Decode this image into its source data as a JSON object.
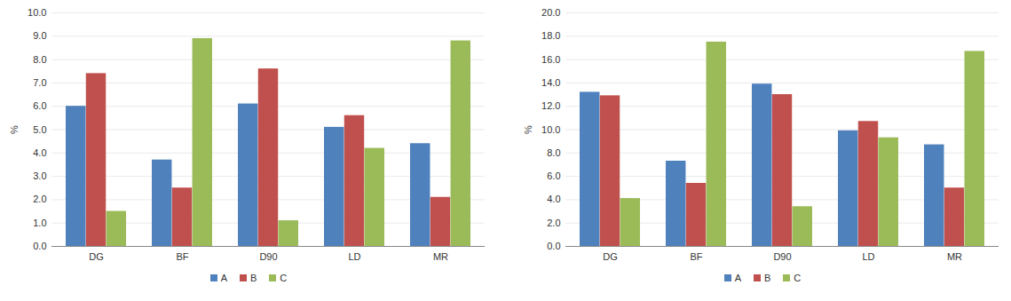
{
  "chart_data": [
    {
      "type": "bar",
      "y_label": "%",
      "grid": true,
      "legend": "bottom",
      "categories": [
        "DG",
        "BF",
        "D90",
        "LD",
        "MR"
      ],
      "ylim": [
        0,
        10
      ],
      "yticks": [
        {
          "value": 0,
          "label": "0.0"
        },
        {
          "value": 1,
          "label": "1.0"
        },
        {
          "value": 2,
          "label": "2.0"
        },
        {
          "value": 3,
          "label": "3.0"
        },
        {
          "value": 4,
          "label": "4.0"
        },
        {
          "value": 5,
          "label": "5.0"
        },
        {
          "value": 6,
          "label": "6.0"
        },
        {
          "value": 7,
          "label": "7.0"
        },
        {
          "value": 8,
          "label": "8.0"
        },
        {
          "value": 9,
          "label": "9.0"
        },
        {
          "value": 10,
          "label": "10.0"
        }
      ],
      "series": [
        {
          "name": "A",
          "color": "#4f81bd",
          "values": [
            6.0,
            3.7,
            6.1,
            5.1,
            4.4
          ]
        },
        {
          "name": "B",
          "color": "#c0504d",
          "values": [
            7.4,
            2.5,
            7.6,
            5.6,
            2.1
          ]
        },
        {
          "name": "C",
          "color": "#9bbb59",
          "values": [
            1.5,
            8.9,
            1.1,
            4.2,
            8.8
          ]
        }
      ]
    },
    {
      "type": "bar",
      "y_label": "%",
      "grid": true,
      "legend": "bottom",
      "categories": [
        "DG",
        "BF",
        "D90",
        "LD",
        "MR"
      ],
      "ylim": [
        0,
        20
      ],
      "yticks": [
        {
          "value": 0,
          "label": "0.0"
        },
        {
          "value": 2,
          "label": "2.0"
        },
        {
          "value": 4,
          "label": "4.0"
        },
        {
          "value": 6,
          "label": "6.0"
        },
        {
          "value": 8,
          "label": "8.0"
        },
        {
          "value": 10,
          "label": "10.0"
        },
        {
          "value": 12,
          "label": "12.0"
        },
        {
          "value": 14,
          "label": "14.0"
        },
        {
          "value": 16,
          "label": "16.0"
        },
        {
          "value": 18,
          "label": "18.0"
        },
        {
          "value": 20,
          "label": "20.0"
        }
      ],
      "series": [
        {
          "name": "A",
          "color": "#4f81bd",
          "values": [
            13.2,
            7.3,
            13.9,
            9.9,
            8.7
          ]
        },
        {
          "name": "B",
          "color": "#c0504d",
          "values": [
            12.9,
            5.4,
            13.0,
            10.7,
            5.0
          ]
        },
        {
          "name": "C",
          "color": "#9bbb59",
          "values": [
            4.1,
            17.5,
            3.4,
            9.3,
            16.7
          ]
        }
      ]
    }
  ]
}
